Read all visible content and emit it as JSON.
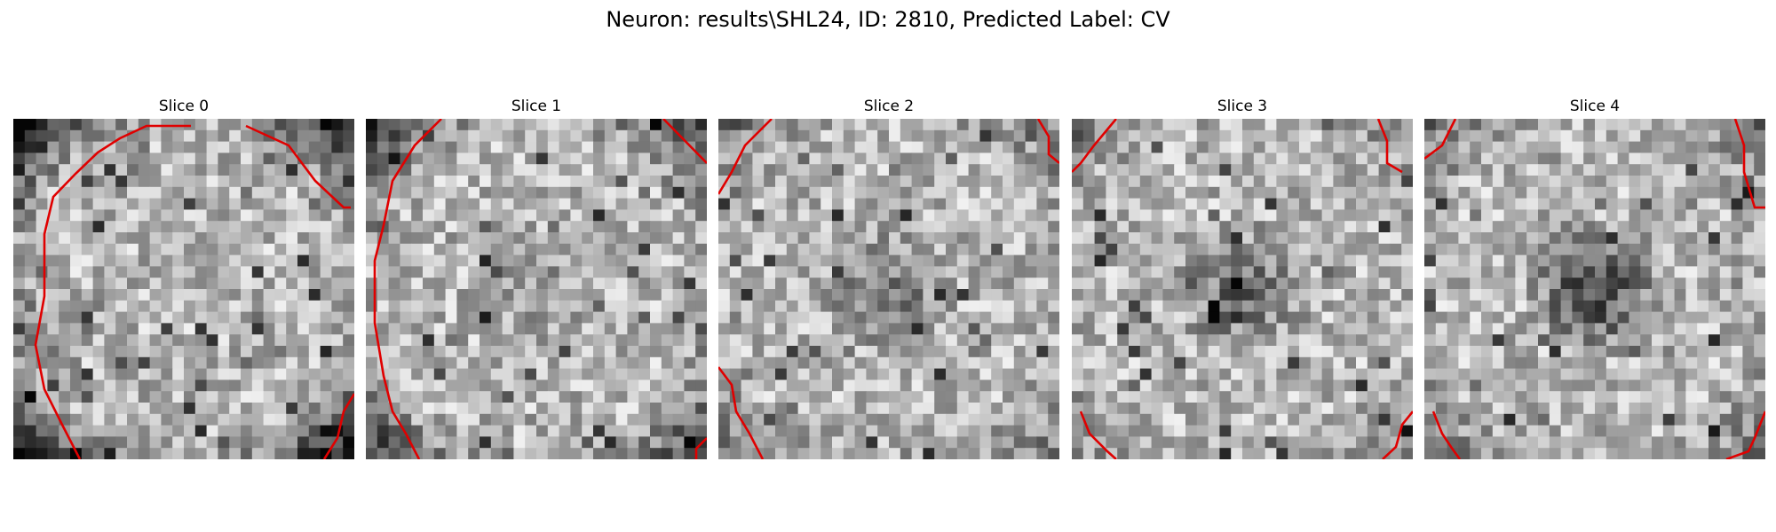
{
  "figure": {
    "title": "Neuron: results\\SHL24, ID: 2810, Predicted Label: CV"
  },
  "slices": [
    {
      "label": "Slice 0",
      "seed": 11,
      "halo": 0.9,
      "dark_center": 0.0
    },
    {
      "label": "Slice 1",
      "seed": 23,
      "halo": 0.6,
      "dark_center": 0.25
    },
    {
      "label": "Slice 2",
      "seed": 37,
      "halo": 0.3,
      "dark_center": 0.45
    },
    {
      "label": "Slice 3",
      "seed": 41,
      "halo": 0.2,
      "dark_center": 0.55
    },
    {
      "label": "Slice 4",
      "seed": 53,
      "halo": 0.35,
      "dark_center": 0.8
    }
  ],
  "colors": {
    "contour": "#e00000",
    "background": "#ffffff"
  }
}
